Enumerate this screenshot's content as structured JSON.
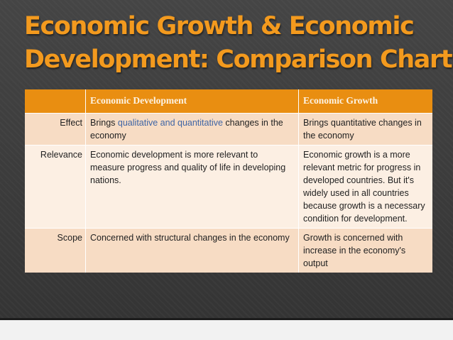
{
  "slide": {
    "title_line1": "Economic Growth & Economic",
    "title_line2": "Development: Comparison Chart"
  },
  "table": {
    "headers": [
      "",
      "Economic Development",
      "Economic Growth"
    ],
    "rows": [
      {
        "label": "Effect",
        "dev_prefix": "Brings ",
        "dev_highlight": "qualitative and quantitative",
        "dev_suffix": " changes in the economy",
        "growth": "Brings quantitative changes in the economy"
      },
      {
        "label": "Relevance",
        "dev": "Economic development is more relevant to measure progress and quality of life in developing nations.",
        "growth": "Economic growth is a more relevant metric for progress in developed countries. But it's widely used in all countries because growth is a necessary condition for development."
      },
      {
        "label": "Scope",
        "dev": "Concerned with structural changes in the economy",
        "growth": "Growth is concerned with increase in the economy's output"
      }
    ]
  },
  "colors": {
    "title": "#f39a1e",
    "header_bg": "#e98e11",
    "row_dark": "#f7dcc4",
    "row_light": "#fcefe3",
    "highlight_text": "#3f65a5"
  }
}
